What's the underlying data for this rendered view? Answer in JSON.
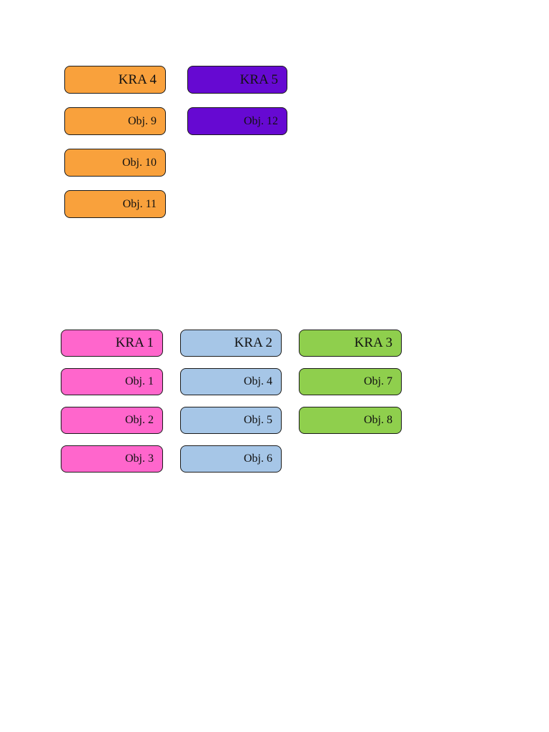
{
  "canvas": {
    "background": "#ffffff",
    "box_border_color": "#1b1b1b",
    "text_color": "#111111"
  },
  "diagram": {
    "groups": [
      {
        "columns": [
          {
            "kra": "KRA 4",
            "color": "#F9A13C",
            "objectives": [
              "Obj. 9",
              "Obj. 10",
              "Obj. 11"
            ]
          },
          {
            "kra": "KRA 5",
            "color": "#6609D2",
            "objectives": [
              "Obj. 12"
            ]
          }
        ]
      },
      {
        "columns": [
          {
            "kra": "KRA 1",
            "color": "#FF66CC",
            "objectives": [
              "Obj. 1",
              "Obj. 2",
              "Obj. 3"
            ]
          },
          {
            "kra": "KRA 2",
            "color": "#A6C6E7",
            "objectives": [
              "Obj. 4",
              "Obj. 5",
              "Obj. 6"
            ]
          },
          {
            "kra": "KRA 3",
            "color": "#8FCF4D",
            "objectives": [
              "Obj. 7",
              "Obj. 8"
            ]
          }
        ]
      }
    ]
  }
}
